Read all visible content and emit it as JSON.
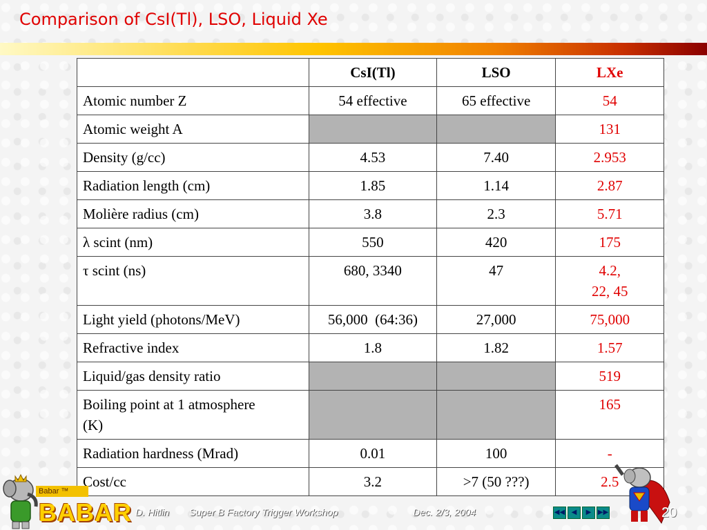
{
  "slide": {
    "title": "Comparison of CsI(Tl), LSO, Liquid Xe",
    "page_number": "20"
  },
  "table": {
    "headers": [
      "",
      "CsI(Tl)",
      "LSO",
      "LXe"
    ],
    "rows": [
      {
        "label": "Atomic number Z",
        "csi": "54 effective",
        "lso": "65 effective",
        "lxe": "54"
      },
      {
        "label": "Atomic weight A",
        "csi": "",
        "lso": "",
        "lxe": "131"
      },
      {
        "label": "Density (g/cc)",
        "csi": "4.53",
        "lso": "7.40",
        "lxe": "2.953"
      },
      {
        "label": "Radiation length (cm)",
        "csi": "1.85",
        "lso": "1.14",
        "lxe": "2.87"
      },
      {
        "label": "Molière radius (cm)",
        "csi": "3.8",
        "lso": "2.3",
        "lxe": "5.71"
      },
      {
        "label": "λ scint (nm)",
        "csi": "550",
        "lso": "420",
        "lxe": "175"
      },
      {
        "label": "τ scint (ns)",
        "csi": "680, 3340",
        "lso": "47",
        "lxe": "4.2,",
        "lxe2": "22, 45"
      },
      {
        "label": "Light yield (photons/MeV)",
        "csi": "56,000  (64:36)",
        "lso": "27,000",
        "lxe": "75,000"
      },
      {
        "label": "Refractive index",
        "csi": "1.8",
        "lso": "1.82",
        "lxe": "1.57"
      },
      {
        "label": "Liquid/gas density ratio",
        "csi": "",
        "lso": "",
        "lxe": "519"
      },
      {
        "label": "Boiling point at 1 atmosphere",
        "label2": "(K)",
        "csi": "",
        "lso": "",
        "lxe": "165"
      },
      {
        "label": "Radiation hardness (Mrad)",
        "csi": "0.01",
        "lso": "100",
        "lxe": "-"
      },
      {
        "label": "Cost/cc",
        "csi": "3.2",
        "lso": ">7 (50 ???)",
        "lxe": "2.5"
      }
    ]
  },
  "footer": {
    "babar_tm": "Babar ™",
    "logo": "BABAR",
    "author": "D. Hitlin",
    "event": "Super B Factory Trigger Workshop",
    "date": "Dec. 2/3, 2004"
  },
  "nav": {
    "buttons": [
      "first-icon",
      "prev-icon",
      "next-icon",
      "last-icon"
    ]
  },
  "colors": {
    "title": "#e00000",
    "lxe": "#e00000",
    "gray_cell": "#b3b3b3"
  }
}
